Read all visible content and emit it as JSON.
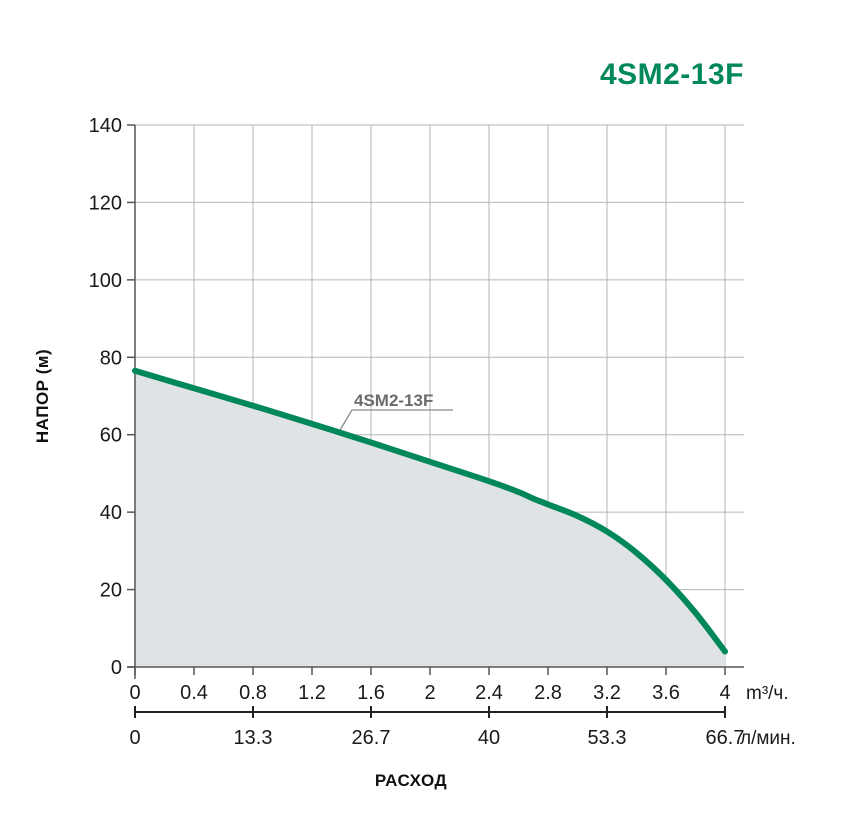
{
  "colors": {
    "curve": "#00875a",
    "title": "#00875a",
    "fill": "#dfe3e6",
    "grid": "#b5b5b5",
    "axis": "#555555",
    "leader": "#8a8a8a"
  },
  "chart_data": {
    "type": "line",
    "title": "4SM2-13F",
    "ylabel": "НАПОР (м)",
    "xlabel": "РАСХОД",
    "ylim": [
      0,
      140
    ],
    "y_ticks": [
      "0",
      "20",
      "40",
      "60",
      "80",
      "100",
      "120",
      "140"
    ],
    "xlim": [
      0,
      4
    ],
    "x_ticks_primary": [
      "0",
      "0.4",
      "0.8",
      "1.2",
      "1.6",
      "2",
      "2.4",
      "2.8",
      "3.2",
      "3.6",
      "4"
    ],
    "x_unit_primary": "m³/ч.",
    "x_ticks_secondary": [
      "0",
      "13.3",
      "26.7",
      "40",
      "53.3",
      "66.7"
    ],
    "x_unit_secondary": "л/мин.",
    "grid": true,
    "series": [
      {
        "name": "4SM2-13F",
        "x": [
          0,
          0.4,
          0.8,
          1.2,
          1.6,
          2.0,
          2.4,
          2.6,
          2.7,
          2.8,
          3.0,
          3.2,
          3.4,
          3.6,
          3.8,
          4.0
        ],
        "y": [
          76.5,
          72,
          67.5,
          62.8,
          58,
          53,
          48,
          45.2,
          43.5,
          42,
          39,
          35,
          29.5,
          22.5,
          14,
          4
        ]
      }
    ]
  }
}
